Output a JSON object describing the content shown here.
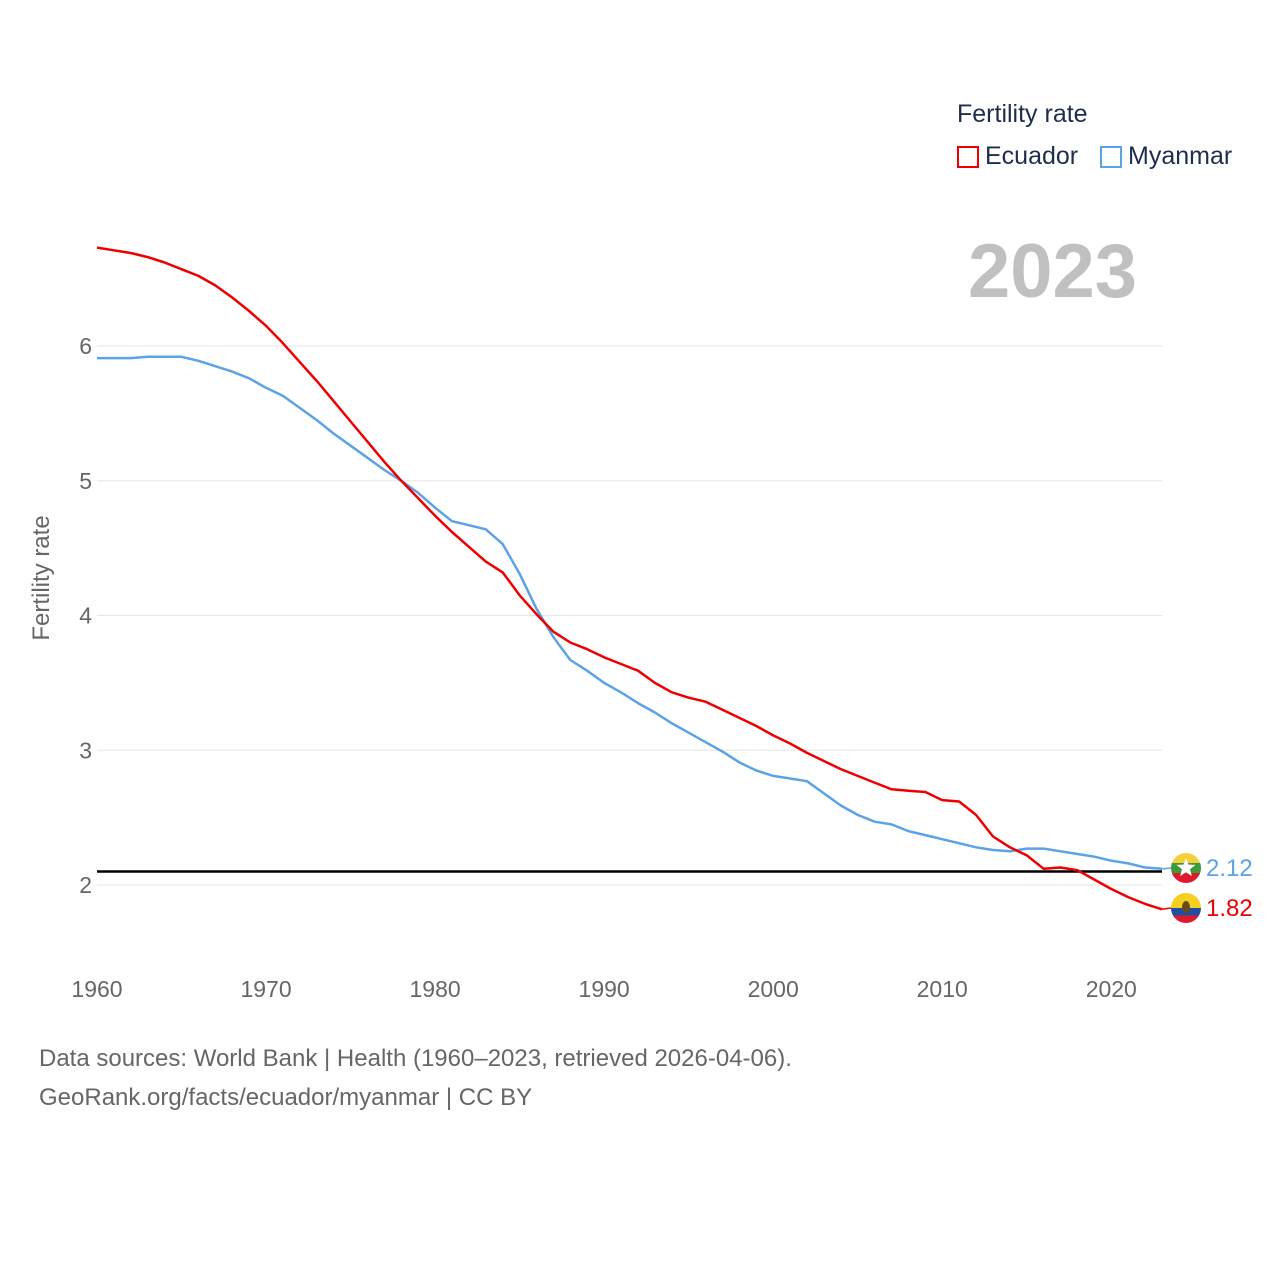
{
  "legend": {
    "title": "Fertility rate",
    "items": [
      {
        "label": "Ecuador",
        "color": "#ee0000"
      },
      {
        "label": "Myanmar",
        "color": "#5ba3e6"
      }
    ]
  },
  "year_label": "2023",
  "source": {
    "line1": "Data sources: World Bank | Health (1960–2023, retrieved 2026-04-06).",
    "line2": "GeoRank.org/facts/ecuador/myanmar | CC BY"
  },
  "chart_data": {
    "type": "line",
    "title": "Fertility rate",
    "xlabel": "",
    "ylabel": "Fertility rate",
    "xlim": [
      1960,
      2023
    ],
    "ylim": [
      1.5,
      7.0
    ],
    "x_ticks": [
      1960,
      1970,
      1980,
      1990,
      2000,
      2010,
      2020
    ],
    "y_ticks": [
      2,
      3,
      4,
      5,
      6
    ],
    "reference_line": 2.1,
    "x": [
      1960,
      1961,
      1962,
      1963,
      1964,
      1965,
      1966,
      1967,
      1968,
      1969,
      1970,
      1971,
      1972,
      1973,
      1974,
      1975,
      1976,
      1977,
      1978,
      1979,
      1980,
      1981,
      1982,
      1983,
      1984,
      1985,
      1986,
      1987,
      1988,
      1989,
      1990,
      1991,
      1992,
      1993,
      1994,
      1995,
      1996,
      1997,
      1998,
      1999,
      2000,
      2001,
      2002,
      2003,
      2004,
      2005,
      2006,
      2007,
      2008,
      2009,
      2010,
      2011,
      2012,
      2013,
      2014,
      2015,
      2016,
      2017,
      2018,
      2019,
      2020,
      2021,
      2022,
      2023
    ],
    "series": [
      {
        "name": "Ecuador",
        "color": "#ee0000",
        "end_label": "1.82",
        "values": [
          6.73,
          6.71,
          6.69,
          6.66,
          6.62,
          6.57,
          6.52,
          6.45,
          6.36,
          6.26,
          6.15,
          6.02,
          5.88,
          5.74,
          5.59,
          5.44,
          5.29,
          5.14,
          5.0,
          4.87,
          4.74,
          4.62,
          4.51,
          4.4,
          4.32,
          4.15,
          4.01,
          3.88,
          3.8,
          3.75,
          3.69,
          3.64,
          3.59,
          3.5,
          3.43,
          3.39,
          3.36,
          3.3,
          3.24,
          3.18,
          3.11,
          3.05,
          2.98,
          2.92,
          2.86,
          2.81,
          2.76,
          2.71,
          2.7,
          2.69,
          2.63,
          2.62,
          2.52,
          2.36,
          2.28,
          2.22,
          2.12,
          2.13,
          2.11,
          2.04,
          1.97,
          1.91,
          1.86,
          1.82
        ]
      },
      {
        "name": "Myanmar",
        "color": "#5ba3e6",
        "end_label": "2.12",
        "values": [
          5.91,
          5.91,
          5.91,
          5.92,
          5.92,
          5.92,
          5.89,
          5.85,
          5.81,
          5.76,
          5.69,
          5.63,
          5.54,
          5.45,
          5.35,
          5.26,
          5.17,
          5.08,
          5.0,
          4.91,
          4.8,
          4.7,
          4.67,
          4.64,
          4.53,
          4.31,
          4.05,
          3.84,
          3.67,
          3.59,
          3.5,
          3.43,
          3.35,
          3.28,
          3.2,
          3.13,
          3.06,
          2.99,
          2.91,
          2.85,
          2.81,
          2.79,
          2.77,
          2.68,
          2.59,
          2.52,
          2.47,
          2.45,
          2.4,
          2.37,
          2.34,
          2.31,
          2.28,
          2.26,
          2.25,
          2.27,
          2.27,
          2.25,
          2.23,
          2.21,
          2.18,
          2.16,
          2.13,
          2.12
        ]
      }
    ]
  }
}
